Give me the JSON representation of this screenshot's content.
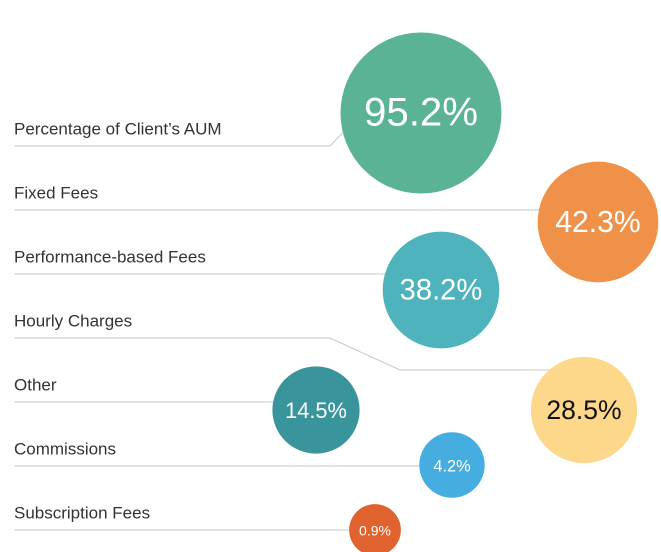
{
  "chart_data": {
    "type": "bubble",
    "categories": [
      "Percentage of Client’s AUM",
      "Fixed Fees",
      "Performance-based Fees",
      "Hourly Charges",
      "Other",
      "Commissions",
      "Subscription Fees"
    ],
    "values": [
      95.2,
      42.3,
      38.2,
      28.5,
      14.5,
      4.2,
      0.9
    ],
    "value_labels": [
      "95.2%",
      "42.3%",
      "38.2%",
      "28.5%",
      "14.5%",
      "4.2%",
      "0.9%"
    ],
    "colors": [
      "#5ab394",
      "#f0914a",
      "#4fb3bd",
      "#fdd88a",
      "#3a949c",
      "#45ade0",
      "#e0622e"
    ]
  }
}
